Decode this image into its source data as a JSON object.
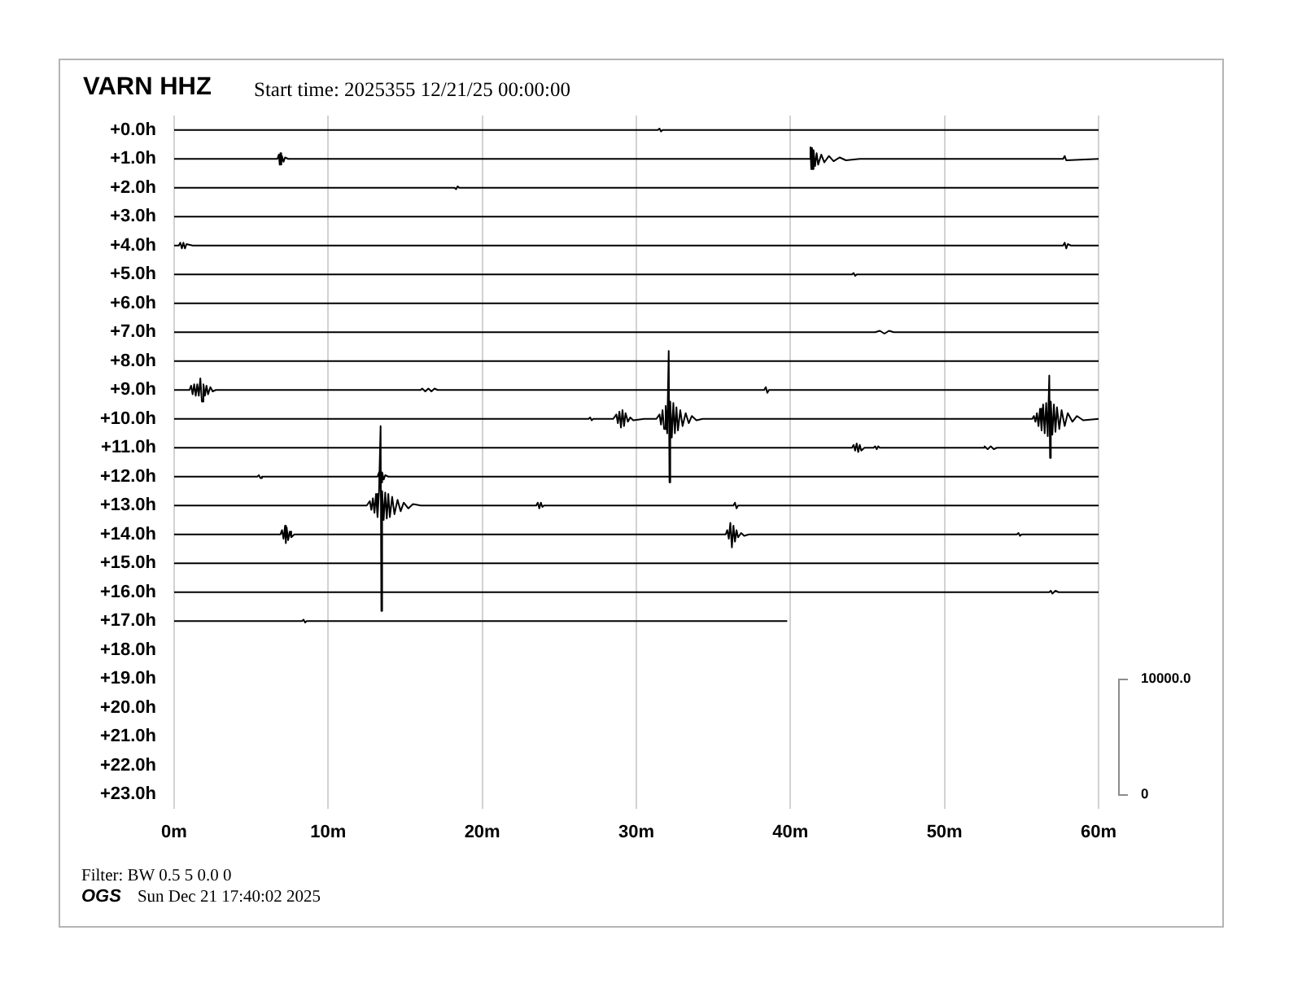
{
  "chart_data": {
    "type": "line",
    "title": "VARN HHZ",
    "subtitle": "Start time: 2025355 12/21/25 00:00:00",
    "annotations": [
      "Filter: BW 0.5 5 0.0 0",
      "OGS",
      "Sun Dec 21 17:40:02 2025"
    ],
    "xlim": [
      0,
      60
    ],
    "xticks": [
      {
        "value": 0,
        "label": "0m"
      },
      {
        "value": 10,
        "label": "10m"
      },
      {
        "value": 20,
        "label": "20m"
      },
      {
        "value": 30,
        "label": "30m"
      },
      {
        "value": 40,
        "label": "40m"
      },
      {
        "value": 50,
        "label": "50m"
      },
      {
        "value": 60,
        "label": "60m"
      }
    ],
    "ylim": [
      23.5,
      -0.5
    ],
    "yticks": [
      {
        "value": 0,
        "label": "+0.0h"
      },
      {
        "value": 1,
        "label": "+1.0h"
      },
      {
        "value": 2,
        "label": "+2.0h"
      },
      {
        "value": 3,
        "label": "+3.0h"
      },
      {
        "value": 4,
        "label": "+4.0h"
      },
      {
        "value": 5,
        "label": "+5.0h"
      },
      {
        "value": 6,
        "label": "+6.0h"
      },
      {
        "value": 7,
        "label": "+7.0h"
      },
      {
        "value": 8,
        "label": "+8.0h"
      },
      {
        "value": 9,
        "label": "+9.0h"
      },
      {
        "value": 10,
        "label": "+10.0h"
      },
      {
        "value": 11,
        "label": "+11.0h"
      },
      {
        "value": 12,
        "label": "+12.0h"
      },
      {
        "value": 13,
        "label": "+13.0h"
      },
      {
        "value": 14,
        "label": "+14.0h"
      },
      {
        "value": 15,
        "label": "+15.0h"
      },
      {
        "value": 16,
        "label": "+16.0h"
      },
      {
        "value": 17,
        "label": "+17.0h"
      },
      {
        "value": 18,
        "label": "+18.0h"
      },
      {
        "value": 19,
        "label": "+19.0h"
      },
      {
        "value": 20,
        "label": "+20.0h"
      },
      {
        "value": 21,
        "label": "+21.0h"
      },
      {
        "value": 22,
        "label": "+22.0h"
      },
      {
        "value": 23,
        "label": "+23.0h"
      }
    ],
    "y2lim": [
      -1250,
      58750
    ],
    "y2ticks": [
      {
        "value": 0,
        "label": "0"
      },
      {
        "value": 10000,
        "label": "10000.0"
      }
    ],
    "grid": "x",
    "marker": "none",
    "line_style": "solid",
    "series": [
      {
        "color": "#000000",
        "x": [
          0,
          31.4,
          31.5,
          31.6,
          31.7,
          60
        ],
        "values": [
          0,
          0,
          -0.05,
          0.05,
          0,
          0
        ]
      },
      {
        "color": "#000000",
        "x": [
          0,
          6.7,
          6.8,
          6.85,
          6.9,
          6.95,
          7.0,
          7.1,
          7.2,
          7.4,
          41.2,
          41.3,
          41.35,
          41.4,
          41.45,
          41.5,
          41.6,
          41.7,
          41.8,
          42.0,
          42.2,
          42.5,
          42.8,
          43.2,
          43.6,
          44.5,
          57.7,
          57.8,
          57.9,
          60
        ],
        "values": [
          1,
          1,
          0.85,
          1.2,
          0.8,
          1.2,
          0.9,
          1.1,
          0.95,
          1,
          1,
          0.6,
          1.35,
          0.62,
          1.35,
          0.7,
          1.25,
          0.8,
          1.2,
          0.85,
          1.12,
          0.9,
          1.08,
          0.95,
          1.05,
          1,
          1,
          0.9,
          1.05,
          1
        ]
      },
      {
        "color": "#000000",
        "x": [
          0,
          18.2,
          18.3,
          18.4,
          18.5,
          60
        ],
        "values": [
          2,
          2,
          2.05,
          1.95,
          2,
          2
        ]
      },
      {
        "color": "#000000",
        "x": [
          0,
          60
        ],
        "values": [
          3,
          3
        ]
      },
      {
        "color": "#000000",
        "x": [
          0,
          0.3,
          0.4,
          0.5,
          0.6,
          0.7,
          0.8,
          1.2,
          57.7,
          57.8,
          57.9,
          58.0,
          58.2,
          60
        ],
        "values": [
          4,
          4,
          3.9,
          4.1,
          3.9,
          4.1,
          3.95,
          4,
          4,
          3.9,
          4.1,
          3.95,
          4,
          4
        ]
      },
      {
        "color": "#000000",
        "x": [
          0,
          44,
          44.1,
          44.2,
          44.3,
          60
        ],
        "values": [
          5,
          5,
          4.95,
          5.05,
          5,
          5
        ]
      },
      {
        "color": "#000000",
        "x": [
          0,
          60
        ],
        "values": [
          6,
          6
        ]
      },
      {
        "color": "#000000",
        "x": [
          0,
          45.5,
          45.8,
          46.1,
          46.4,
          46.7,
          60
        ],
        "values": [
          7,
          7,
          6.95,
          7.05,
          6.95,
          7,
          7
        ]
      },
      {
        "color": "#000000",
        "x": [
          0,
          60
        ],
        "values": [
          8,
          8
        ]
      },
      {
        "color": "#000000",
        "x": [
          0,
          1.0,
          1.1,
          1.2,
          1.3,
          1.4,
          1.5,
          1.6,
          1.7,
          1.8,
          1.9,
          2.0,
          2.1,
          2.2,
          2.35,
          2.5,
          2.7,
          16.0,
          16.1,
          16.3,
          16.5,
          16.7,
          16.9,
          17.1,
          38.3,
          38.4,
          38.5,
          38.6,
          60
        ],
        "values": [
          9,
          9,
          8.85,
          9.15,
          8.8,
          9.2,
          8.8,
          9.2,
          8.6,
          9.4,
          8.8,
          9.2,
          8.85,
          9.15,
          8.9,
          9.05,
          9,
          9,
          8.95,
          9.05,
          8.95,
          9.05,
          8.95,
          9,
          9,
          8.9,
          9.1,
          9,
          9
        ]
      },
      {
        "color": "#000000",
        "x": [
          0,
          26.9,
          27.0,
          27.1,
          27.2,
          28.5,
          28.7,
          28.8,
          28.9,
          29.0,
          29.1,
          29.2,
          29.3,
          29.45,
          29.6,
          29.8,
          30.5,
          31.3,
          31.5,
          31.6,
          31.7,
          31.8,
          31.9,
          32.0,
          32.1,
          32.15,
          32.2,
          32.3,
          32.4,
          32.5,
          32.6,
          32.7,
          32.85,
          33.0,
          33.2,
          33.4,
          33.6,
          33.9,
          34.3,
          55.7,
          55.8,
          55.9,
          56.0,
          56.1,
          56.2,
          56.3,
          56.4,
          56.5,
          56.6,
          56.7,
          56.8,
          56.85,
          56.9,
          57.0,
          57.1,
          57.2,
          57.3,
          57.45,
          57.6,
          57.8,
          58.0,
          58.3,
          58.6,
          59.0,
          60
        ],
        "values": [
          10,
          10,
          9.95,
          10.05,
          10,
          10,
          9.85,
          10.15,
          9.75,
          10.3,
          9.7,
          10.25,
          9.8,
          10.1,
          9.95,
          10.05,
          10,
          10,
          9.85,
          10.2,
          9.7,
          10.35,
          9.55,
          10.5,
          7.65,
          12.2,
          9.4,
          10.65,
          9.45,
          10.5,
          9.6,
          10.4,
          9.7,
          10.25,
          9.8,
          10.15,
          9.9,
          10.05,
          10,
          10,
          9.9,
          10.1,
          9.8,
          10.25,
          9.65,
          10.4,
          9.5,
          10.5,
          9.45,
          10.6,
          8.5,
          11.35,
          9.4,
          10.55,
          9.5,
          10.45,
          9.6,
          10.35,
          9.7,
          10.25,
          9.8,
          10.1,
          9.9,
          10.05,
          10
        ]
      },
      {
        "color": "#000000",
        "x": [
          0,
          44.0,
          44.1,
          44.2,
          44.3,
          44.4,
          44.5,
          44.6,
          44.8,
          45.4,
          45.5,
          45.6,
          45.7,
          45.8,
          52.5,
          52.6,
          52.8,
          53.0,
          53.2,
          53.4,
          60
        ],
        "values": [
          11,
          11,
          10.9,
          11.1,
          10.85,
          11.15,
          10.9,
          11.1,
          11,
          11,
          10.95,
          11.05,
          10.95,
          11,
          11,
          10.95,
          11.05,
          10.95,
          11.05,
          11,
          11
        ]
      },
      {
        "color": "#000000",
        "x": [
          0,
          5.4,
          5.5,
          5.6,
          5.7,
          13.2,
          13.3,
          13.35,
          13.4,
          13.45,
          13.5,
          13.6,
          13.7,
          13.9,
          60
        ],
        "values": [
          12,
          12,
          11.95,
          12.05,
          12,
          12,
          11.85,
          12.2,
          11.8,
          12.2,
          11.85,
          12.1,
          11.95,
          12,
          12
        ]
      },
      {
        "color": "#000000",
        "x": [
          0,
          12.5,
          12.7,
          12.8,
          12.9,
          13.0,
          13.1,
          13.2,
          13.3,
          13.4,
          13.45,
          13.5,
          13.6,
          13.7,
          13.8,
          13.9,
          14.0,
          14.15,
          14.3,
          14.5,
          14.7,
          14.9,
          15.2,
          15.5,
          16.0,
          23.5,
          23.6,
          23.7,
          23.8,
          23.9,
          24.0,
          36.3,
          36.4,
          36.5,
          36.6,
          60
        ],
        "values": [
          13,
          13,
          12.85,
          13.15,
          12.75,
          13.25,
          12.6,
          13.4,
          12.5,
          10.25,
          16.65,
          12.5,
          13.5,
          12.55,
          13.45,
          12.6,
          13.4,
          12.7,
          13.3,
          12.8,
          13.2,
          12.9,
          13.1,
          12.95,
          13,
          13,
          12.9,
          13.1,
          12.9,
          13.05,
          13,
          13,
          12.9,
          13.1,
          13,
          13
        ]
      },
      {
        "color": "#000000",
        "x": [
          0,
          6.9,
          7.0,
          7.1,
          7.2,
          7.25,
          7.3,
          7.4,
          7.5,
          7.6,
          7.8,
          35.8,
          35.9,
          36.0,
          36.1,
          36.2,
          36.3,
          36.4,
          36.5,
          36.6,
          36.8,
          37.0,
          37.3,
          54.7,
          54.8,
          54.9,
          55.0,
          60
        ],
        "values": [
          14,
          14,
          13.85,
          14.15,
          13.7,
          14.3,
          13.75,
          14.2,
          13.9,
          14.1,
          14,
          14,
          13.85,
          14.15,
          13.6,
          14.45,
          13.7,
          14.25,
          13.85,
          14.1,
          13.95,
          14.05,
          14,
          14,
          13.95,
          14.05,
          14,
          14
        ]
      },
      {
        "color": "#000000",
        "x": [
          0,
          60
        ],
        "values": [
          15,
          15
        ]
      },
      {
        "color": "#000000",
        "x": [
          0,
          56.8,
          56.9,
          57.0,
          57.2,
          57.4,
          60
        ],
        "values": [
          16,
          16,
          15.95,
          16.05,
          15.95,
          16,
          16
        ]
      },
      {
        "color": "#000000",
        "x": [
          0,
          8.3,
          8.4,
          8.5,
          8.6,
          39.75
        ],
        "values": [
          17,
          17,
          16.95,
          17.05,
          17,
          17
        ]
      }
    ]
  }
}
